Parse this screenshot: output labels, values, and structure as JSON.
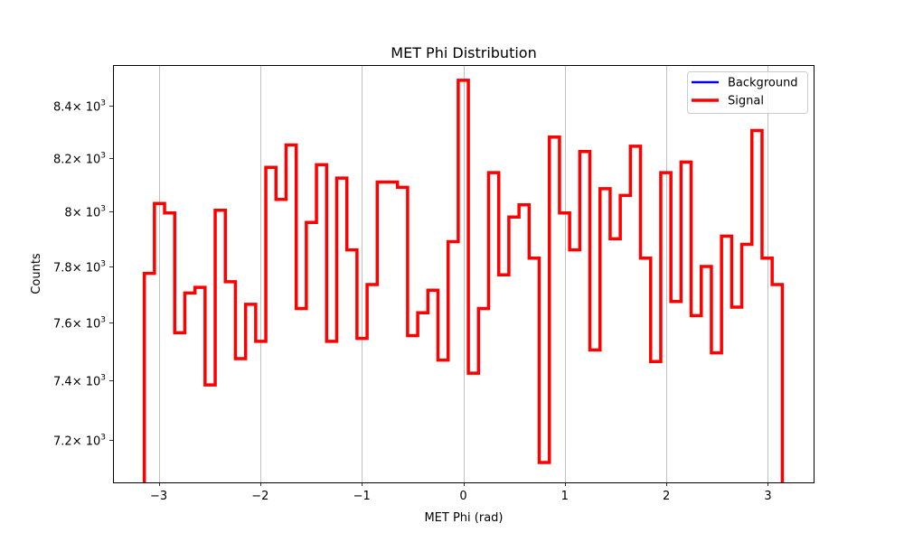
{
  "chart_data": {
    "type": "step",
    "title": "MET Phi Distribution",
    "xlabel": "MET Phi (rad)",
    "ylabel": "Counts",
    "yscale": "log",
    "xlim": [
      -3.45,
      3.45
    ],
    "ylim": [
      7060,
      8560
    ],
    "x_ticks": [
      -3,
      -2,
      -1,
      0,
      1,
      2,
      3
    ],
    "x_tick_labels": [
      "−3",
      "−2",
      "−1",
      "0",
      "1",
      "2",
      "3"
    ],
    "y_ticks": [
      {
        "value": 7200,
        "mantissa": "7.2"
      },
      {
        "value": 7400,
        "mantissa": "7.4"
      },
      {
        "value": 7600,
        "mantissa": "7.6"
      },
      {
        "value": 7800,
        "mantissa": "7.8"
      },
      {
        "value": 8000,
        "mantissa": "8"
      },
      {
        "value": 8200,
        "mantissa": "8.2"
      },
      {
        "value": 8400,
        "mantissa": "8.4"
      }
    ],
    "y_tick_base": "× 10",
    "y_tick_exponent": "3",
    "grid": "x-major",
    "legend_position": "top-right",
    "bin_range": [
      -3.1416,
      3.1416
    ],
    "series": [
      {
        "name": "Background",
        "color": "#0000ff",
        "values": []
      },
      {
        "name": "Signal",
        "color": "#ff0000",
        "values": [
          7775,
          8030,
          7995,
          7565,
          7705,
          7725,
          7385,
          8005,
          7745,
          7475,
          7665,
          7535,
          8165,
          8045,
          8250,
          7650,
          7960,
          8175,
          7535,
          8125,
          7860,
          7545,
          7735,
          8110,
          8110,
          8090,
          7555,
          7635,
          7715,
          7470,
          7890,
          8500,
          7425,
          7650,
          8145,
          7770,
          7980,
          8025,
          7830,
          7125,
          8280,
          7995,
          7860,
          8225,
          7505,
          8085,
          7900,
          8060,
          8245,
          7830,
          7465,
          8145,
          7675,
          8185,
          7625,
          7800,
          7495,
          7910,
          7655,
          7880,
          8305,
          7830,
          7735
        ]
      }
    ]
  }
}
